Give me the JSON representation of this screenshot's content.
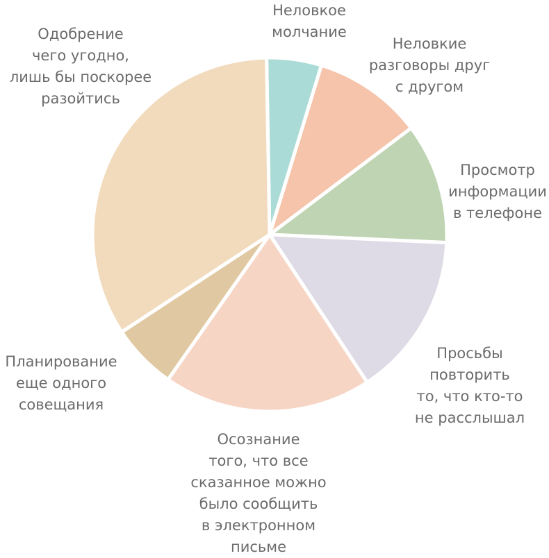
{
  "chart_data": {
    "type": "pie",
    "title": "",
    "slices": [
      {
        "label": "Неловкое молчание",
        "lines": [
          "Неловкое",
          "молчание"
        ],
        "value": 5,
        "color": "#abdbd6"
      },
      {
        "label": "Неловкие разговоры друг с другом",
        "lines": [
          "Неловкие",
          "разговоры друг",
          "с другом"
        ],
        "value": 10,
        "color": "#f5c4aa"
      },
      {
        "label": "Просмотр информации в телефоне",
        "lines": [
          "Просмотр",
          "информации",
          "в телефоне"
        ],
        "value": 11,
        "color": "#bfd4b3"
      },
      {
        "label": "Просьбы повторить то, что кто-то не расслышал",
        "lines": [
          "Просьбы",
          "повторить",
          "то, что кто-то",
          "не расслышал"
        ],
        "value": 15,
        "color": "#dedbe6"
      },
      {
        "label": "Осознание того, что все сказанное можно было сообщить в электронном письме",
        "lines": [
          "Осознание",
          "того, что все",
          "сказанное можно",
          "было сообщить",
          "в электронном",
          "письме"
        ],
        "value": 19,
        "color": "#f7d5c5"
      },
      {
        "label": "Планирование еще одного совещания",
        "lines": [
          "Планирование",
          "еще одного",
          "совещания"
        ],
        "value": 6,
        "color": "#e0c9a2"
      },
      {
        "label": "Одобрение чего угодно, лишь бы поскорее разойтись",
        "lines": [
          "Одобрение",
          "чего угодно,",
          "лишь бы поскорее",
          "разойтись"
        ],
        "value": 34,
        "color": "#f2dbbc"
      }
    ],
    "legend": "none"
  }
}
